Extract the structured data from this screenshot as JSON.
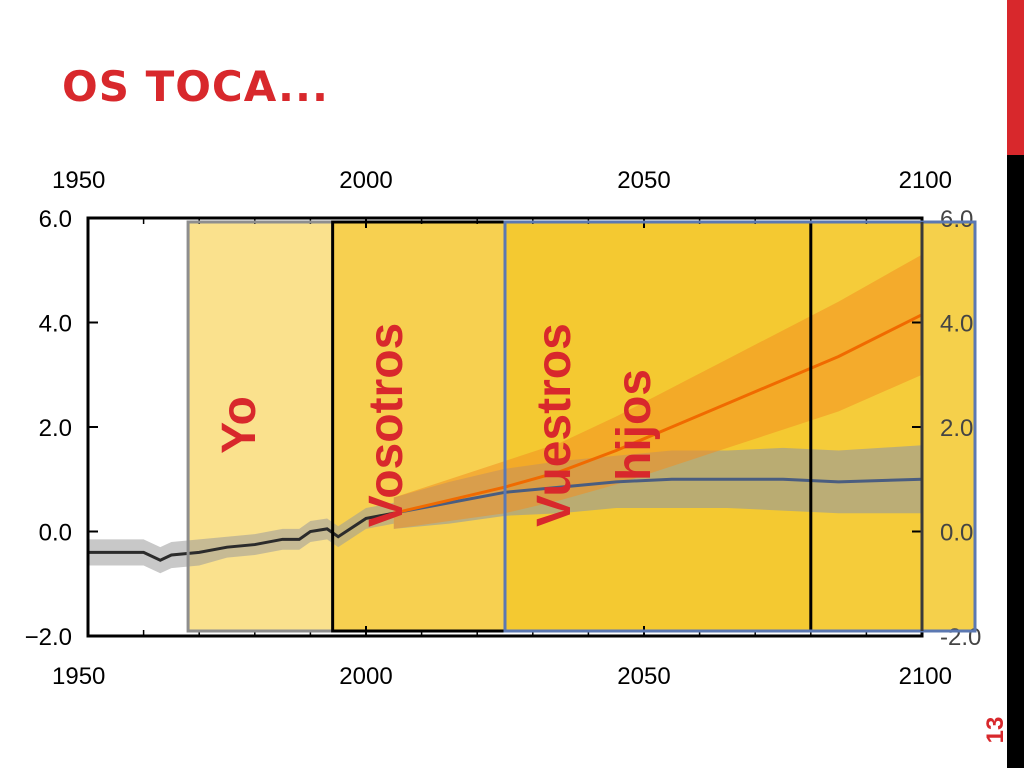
{
  "slide": {
    "title": "OS TOCA...",
    "page_number": "13",
    "accent_colors": {
      "title": "#d8282c",
      "bar_top": "#d8282c",
      "bar_bottom": "#000000"
    }
  },
  "chart_data": {
    "type": "line",
    "title": "",
    "xlabel": "",
    "ylabel": "",
    "xlim": [
      1950,
      2100
    ],
    "ylim": [
      -2.0,
      6.0
    ],
    "x_ticks": [
      "1950",
      "2000",
      "2050",
      "2100"
    ],
    "y_ticks": [
      "6.0",
      "4.0",
      "2.0",
      "0.0",
      "−2.0"
    ],
    "grid": false,
    "series": [
      {
        "color": "#2b2b2b",
        "band_color": "#9a9a9a",
        "x": [
          1950,
          1955,
          1960,
          1963,
          1965,
          1970,
          1975,
          1980,
          1985,
          1988,
          1990,
          1993,
          1995,
          2000,
          2005
        ],
        "y": [
          -0.4,
          -0.4,
          -0.4,
          -0.55,
          -0.45,
          -0.4,
          -0.3,
          -0.25,
          -0.15,
          -0.15,
          0.0,
          0.05,
          -0.1,
          0.25,
          0.35
        ],
        "band": [
          0.25,
          0.25,
          0.25,
          0.25,
          0.25,
          0.25,
          0.2,
          0.2,
          0.2,
          0.2,
          0.2,
          0.2,
          0.2,
          0.2,
          0.2
        ]
      },
      {
        "color": "#4a5d80",
        "band_color": "#8a94a8",
        "x": [
          2005,
          2015,
          2025,
          2035,
          2045,
          2055,
          2065,
          2075,
          2085,
          2100
        ],
        "y": [
          0.35,
          0.55,
          0.75,
          0.85,
          0.95,
          1.0,
          1.0,
          1.0,
          0.95,
          1.0
        ],
        "band": [
          0.3,
          0.4,
          0.45,
          0.5,
          0.5,
          0.55,
          0.55,
          0.6,
          0.6,
          0.65
        ]
      },
      {
        "color": "#f06a00",
        "band_color": "#f39020",
        "x": [
          2005,
          2015,
          2025,
          2035,
          2045,
          2055,
          2065,
          2075,
          2085,
          2100
        ],
        "y": [
          0.35,
          0.6,
          0.85,
          1.15,
          1.55,
          2.0,
          2.45,
          2.9,
          3.35,
          4.15
        ],
        "band": [
          0.3,
          0.4,
          0.5,
          0.55,
          0.65,
          0.75,
          0.85,
          0.95,
          1.05,
          1.15
        ]
      }
    ]
  },
  "overlays": {
    "yo": {
      "label": "Yo",
      "from": 1968,
      "to": 2100,
      "fill": "#f9dc79",
      "border": "#8e8e8e"
    },
    "vosotros": {
      "label": "Vosotros",
      "from": 1994,
      "to": 2080,
      "fill": "#f6cc45",
      "border": "#000000"
    },
    "vuestros_hijos": {
      "label1": "Vuestros",
      "label2": "hijos",
      "from": 2025,
      "to": 2110,
      "fill": "#f3c82c",
      "border": "#5b78b2"
    },
    "end_marker_year": 2100,
    "extra_ticks_right": [
      "6.0",
      "4.0",
      "2.0",
      "0.0",
      "-2.0"
    ]
  }
}
